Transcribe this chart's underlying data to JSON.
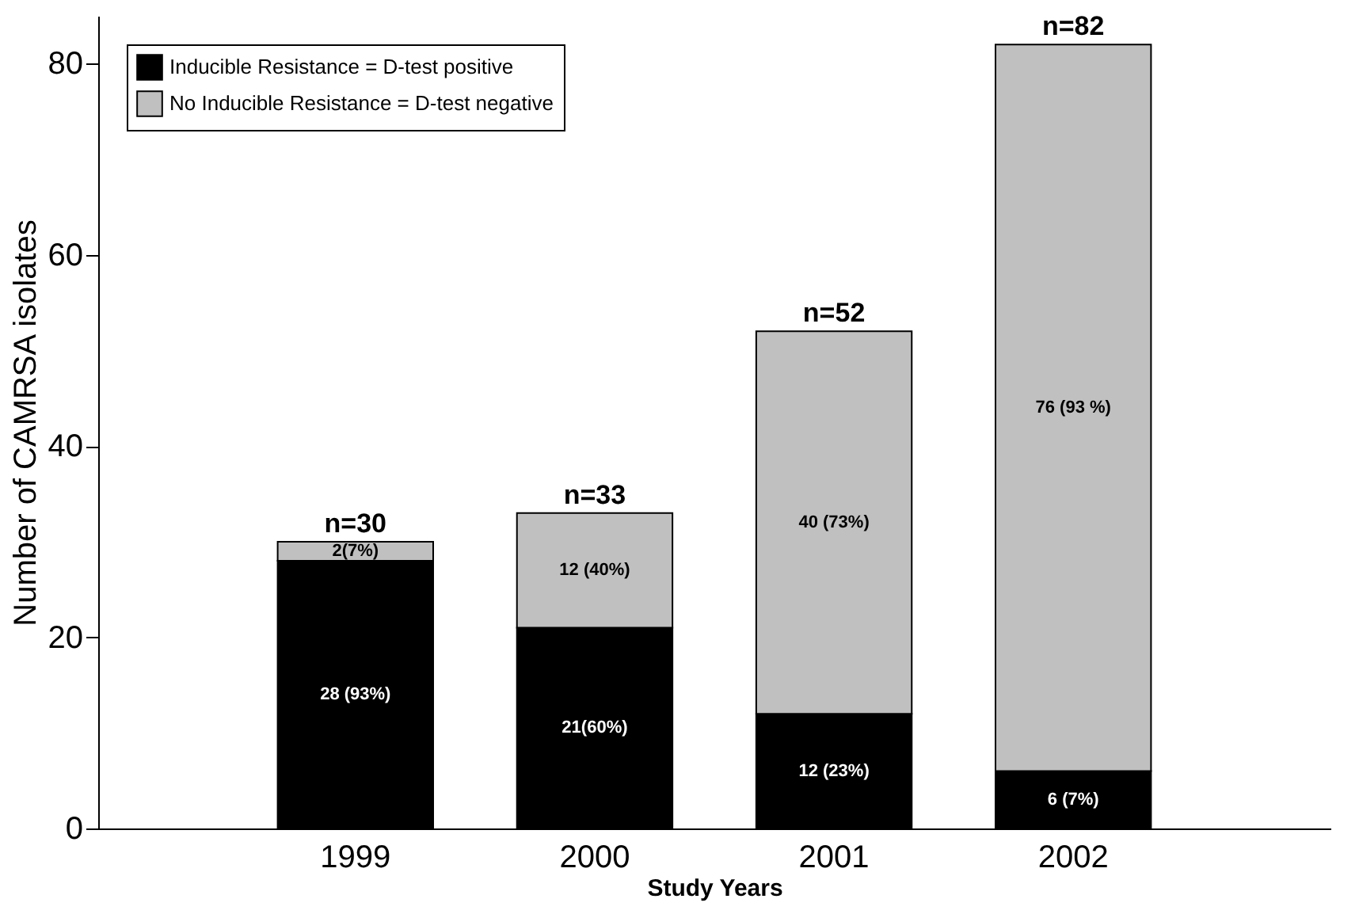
{
  "chart_data": {
    "type": "bar",
    "stacked": true,
    "xlabel": "Study Years",
    "ylabel": "Number of CAMRSA isolates",
    "categories": [
      "1999",
      "2000",
      "2001",
      "2002"
    ],
    "series": [
      {
        "name": "Inducible Resistance = D-test positive",
        "color": "#000000",
        "values": [
          28,
          21,
          12,
          6
        ],
        "value_labels": [
          "28 (93%)",
          "21(60%)",
          "12 (23%)",
          "6 (7%)"
        ]
      },
      {
        "name": "No Inducible Resistance = D-test negative",
        "color": "#c0c0c0",
        "values": [
          2,
          12,
          40,
          76
        ],
        "value_labels": [
          "2(7%)",
          "12 (40%)",
          "40 (73%)",
          "76 (93 %)"
        ]
      }
    ],
    "totals": [
      "n=30",
      "n=33",
      "n=52",
      "n=82"
    ],
    "ylim": [
      0,
      85
    ],
    "yticks": [
      0,
      20,
      40,
      60,
      80
    ],
    "grid": false,
    "legend": "top left"
  }
}
